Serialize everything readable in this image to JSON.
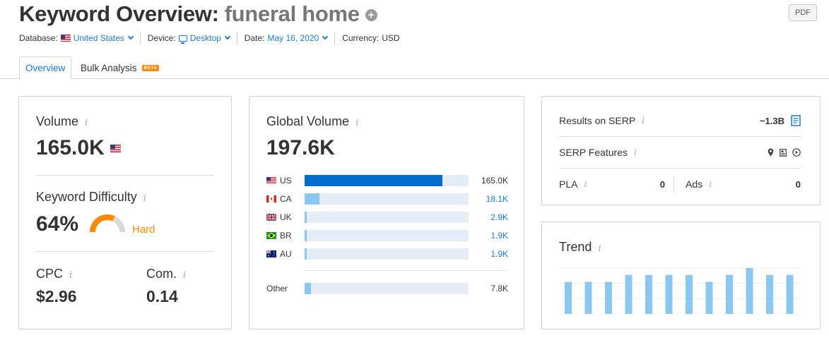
{
  "header": {
    "title": "Keyword Overview:",
    "keyword": "funeral home",
    "pdf_label": "PDF"
  },
  "meta": {
    "database_label": "Database:",
    "database_value": "United States",
    "device_label": "Device:",
    "device_value": "Desktop",
    "date_label": "Date:",
    "date_value": "May 16, 2020",
    "currency_label": "Currency:",
    "currency_value": "USD"
  },
  "tabs": [
    {
      "label": "Overview",
      "active": true
    },
    {
      "label": "Bulk Analysis",
      "badge": "BETA"
    }
  ],
  "volume_card": {
    "volume_label": "Volume",
    "volume_value": "165.0K",
    "kd_label": "Keyword Difficulty",
    "kd_value": "64%",
    "kd_percent": 64,
    "kd_level": "Hard",
    "kd_color": "#ff8a00",
    "cpc_label": "CPC",
    "cpc_value": "$2.96",
    "com_label": "Com.",
    "com_value": "0.14"
  },
  "global_card": {
    "label": "Global Volume",
    "value": "197.6K",
    "rows": [
      {
        "code": "US",
        "value": "165.0K",
        "fill_pct": 84,
        "flag": "us"
      },
      {
        "code": "CA",
        "value": "18.1K",
        "fill_pct": 9,
        "flag": "ca"
      },
      {
        "code": "UK",
        "value": "2.9K",
        "fill_pct": 1.5,
        "flag": "uk"
      },
      {
        "code": "BR",
        "value": "1.9K",
        "fill_pct": 1,
        "flag": "br"
      },
      {
        "code": "AU",
        "value": "1.9K",
        "fill_pct": 1,
        "flag": "au"
      }
    ],
    "other_label": "Other",
    "other_value": "7.8K",
    "other_fill_pct": 4
  },
  "serp_card": {
    "results_label": "Results on SERP",
    "results_value": "~1.3B",
    "features_label": "SERP Features",
    "features_icons": [
      "map-pin-icon",
      "document-icon",
      "play-icon"
    ],
    "pla_label": "PLA",
    "pla_value": "0",
    "ads_label": "Ads",
    "ads_value": "0"
  },
  "trend_card": {
    "label": "Trend",
    "values": [
      0.7,
      0.7,
      0.7,
      0.85,
      0.85,
      0.85,
      0.85,
      0.7,
      0.85,
      1.0,
      0.85,
      0.85
    ],
    "bar_color": "#8ac8f2"
  }
}
